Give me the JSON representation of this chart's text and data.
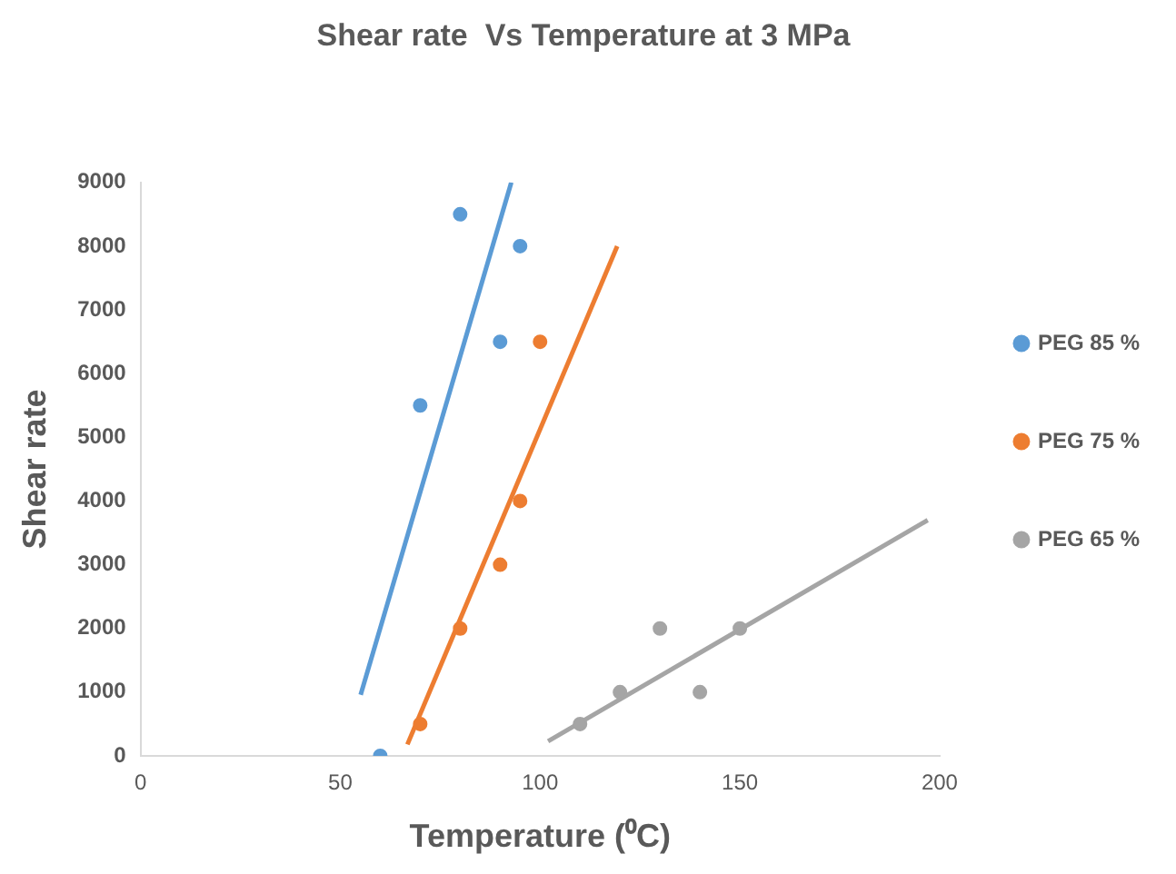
{
  "chart_data": {
    "type": "scatter",
    "title": "Shear rate  Vs Temperature at 3 MPa",
    "xlabel": "Temperature (⁰C)",
    "ylabel": "Shear rate",
    "xlim": [
      0,
      200
    ],
    "xticks": [
      0,
      50,
      100,
      150,
      200
    ],
    "ylim": [
      0,
      9000
    ],
    "yticks": [
      0,
      1000,
      2000,
      3000,
      4000,
      5000,
      6000,
      7000,
      8000,
      9000
    ],
    "grid": false,
    "legend": "right",
    "marker": "circle",
    "series": [
      {
        "name": "PEG 85 %",
        "color": "#5b9bd5",
        "x": [
          60,
          70,
          80,
          90,
          95
        ],
        "values": [
          0,
          5500,
          8500,
          6500,
          8000
        ]
      },
      {
        "name": "PEG 75 %",
        "color": "#ed7d31",
        "x": [
          70,
          80,
          90,
          95,
          100
        ],
        "values": [
          500,
          2000,
          3000,
          4000,
          6500
        ]
      },
      {
        "name": "PEG 65 %",
        "color": "#a5a5a5",
        "x": [
          110,
          120,
          130,
          140,
          150
        ],
        "values": [
          500,
          1000,
          2000,
          1000,
          2000
        ]
      },
      {
        "type": "line",
        "marker": "none",
        "color": "#5b9bd5",
        "x": [
          55.1,
          92.8
        ],
        "values": [
          960,
          9000
        ]
      },
      {
        "type": "line",
        "marker": "none",
        "color": "#ed7d31",
        "x": [
          66.8,
          119.3
        ],
        "values": [
          180,
          8000
        ]
      },
      {
        "type": "line",
        "marker": "none",
        "color": "#a5a5a5",
        "x": [
          102,
          197
        ],
        "values": [
          230,
          3700
        ]
      }
    ]
  }
}
